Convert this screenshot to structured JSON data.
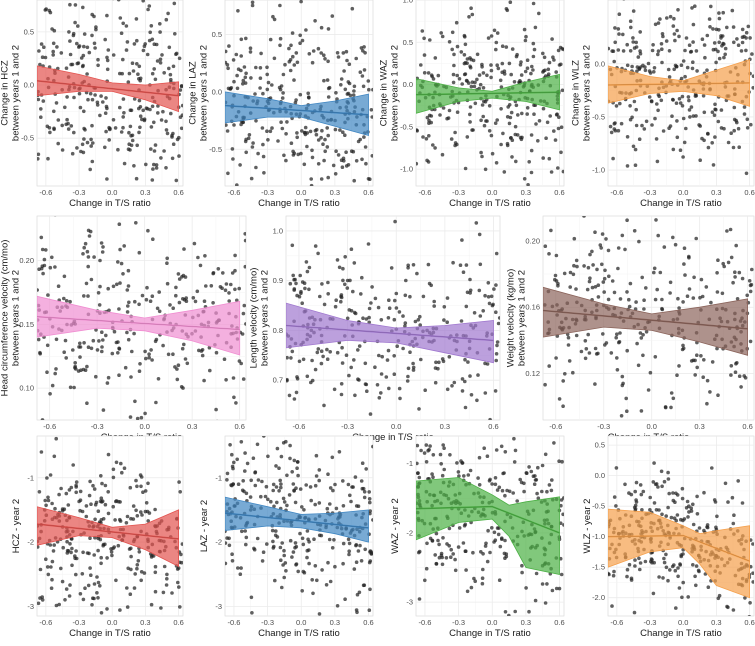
{
  "chart_data": [
    {
      "type": "scatter",
      "panel": "hcz-change",
      "xlabel": "Change in T/S ratio",
      "ylabel": "Change in HCZ\nbetween years 1 and 2",
      "xlim": [
        -0.68,
        0.64
      ],
      "ylim": [
        -0.95,
        0.8
      ],
      "xticks": [
        "-0.6",
        "-0.3",
        "0.0",
        "0.3",
        "0.6"
      ],
      "xtick_values": [
        -0.6,
        -0.3,
        0.0,
        0.3,
        0.6
      ],
      "yticks": [
        "-0.5",
        "0.0",
        "0.5"
      ],
      "ytick_values": [
        -0.5,
        0.0,
        0.5
      ],
      "color": "#e3534f",
      "fit": {
        "x": [
          -0.68,
          0.6
        ],
        "y": [
          0.04,
          -0.1
        ]
      },
      "band": {
        "x": [
          -0.68,
          -0.3,
          0.0,
          0.3,
          0.6
        ],
        "upper": [
          0.18,
          0.1,
          0.02,
          0.0,
          0.03
        ],
        "lower": [
          -0.1,
          -0.06,
          -0.06,
          -0.14,
          -0.25
        ]
      },
      "points_n": 320,
      "points_sd": 0.45
    },
    {
      "type": "scatter",
      "panel": "laz-change",
      "xlabel": "Change in T/S ratio",
      "ylabel": "Change in LAZ\nbetween years 1 and 2",
      "xlim": [
        -0.68,
        0.64
      ],
      "ylim": [
        -0.82,
        0.8
      ],
      "xticks": [
        "-0.6",
        "-0.3",
        "0.0",
        "0.3",
        "0.6"
      ],
      "xtick_values": [
        -0.6,
        -0.3,
        0.0,
        0.3,
        0.6
      ],
      "yticks": [
        "-0.5",
        "0.0",
        "0.5"
      ],
      "ytick_values": [
        -0.5,
        0.0,
        0.5
      ],
      "color": "#3f86c2",
      "fit": {
        "x": [
          -0.68,
          0.6
        ],
        "y": [
          -0.12,
          -0.2
        ]
      },
      "band": {
        "x": [
          -0.68,
          -0.3,
          0.0,
          0.3,
          0.6
        ],
        "upper": [
          0.0,
          -0.06,
          -0.12,
          -0.08,
          -0.02
        ],
        "lower": [
          -0.27,
          -0.22,
          -0.22,
          -0.3,
          -0.38
        ]
      },
      "points_n": 320,
      "points_sd": 0.38
    },
    {
      "type": "scatter",
      "panel": "waz-change",
      "xlabel": "Change in T/S ratio",
      "ylabel": "Change in WAZ\nbetween years 1 and 2",
      "xlim": [
        -0.68,
        0.64
      ],
      "ylim": [
        -1.2,
        1.0
      ],
      "xticks": [
        "-0.6",
        "-0.3",
        "0.0",
        "0.3",
        "0.6"
      ],
      "xtick_values": [
        -0.6,
        -0.3,
        0.0,
        0.3,
        0.6
      ],
      "yticks": [
        "-1.0",
        "-0.5",
        "0.0",
        "0.5",
        "1.0"
      ],
      "ytick_values": [
        -1.0,
        -0.5,
        0.0,
        0.5,
        1.0
      ],
      "color": "#4cb045",
      "fit": {
        "x": [
          -0.68,
          0.6
        ],
        "y": [
          -0.12,
          -0.09
        ]
      },
      "band": {
        "x": [
          -0.68,
          -0.3,
          0.0,
          0.3,
          0.6
        ],
        "upper": [
          0.07,
          -0.04,
          -0.08,
          0.03,
          0.12
        ],
        "lower": [
          -0.34,
          -0.2,
          -0.16,
          -0.2,
          -0.3
        ]
      },
      "points_n": 320,
      "points_sd": 0.45
    },
    {
      "type": "scatter",
      "panel": "wlz-change",
      "xlabel": "Change in T/S ratio",
      "ylabel": "Change in WLZ\nbetween years 1 and 2",
      "xlim": [
        -0.68,
        0.64
      ],
      "ylim": [
        -1.15,
        0.6
      ],
      "xticks": [
        "-0.6",
        "-0.3",
        "0.0",
        "0.3",
        "0.6"
      ],
      "xtick_values": [
        -0.6,
        -0.3,
        0.0,
        0.3,
        0.6
      ],
      "yticks": [
        "-1.0",
        "-0.5",
        "0.0"
      ],
      "ytick_values": [
        -1.0,
        -0.5,
        0.0
      ],
      "color": "#f5a04c",
      "fit": {
        "x": [
          -0.68,
          0.6
        ],
        "y": [
          -0.2,
          -0.18
        ]
      },
      "band": {
        "x": [
          -0.68,
          -0.3,
          0.0,
          0.3,
          0.6
        ],
        "upper": [
          -0.02,
          -0.12,
          -0.16,
          -0.06,
          0.04
        ],
        "lower": [
          -0.37,
          -0.28,
          -0.26,
          -0.3,
          -0.4
        ]
      },
      "points_n": 320,
      "points_sd": 0.38
    },
    {
      "type": "scatter",
      "panel": "hc-velocity",
      "xlabel": "Change in T/S ratio",
      "ylabel": "Head circumference velocity (cm/mo)\nbetween years 1 and 2",
      "xlim": [
        -0.68,
        0.64
      ],
      "ylim": [
        0.075,
        0.235
      ],
      "xticks": [
        "-0.6",
        "-0.3",
        "0.0",
        "0.3",
        "0.6"
      ],
      "xtick_values": [
        -0.6,
        -0.3,
        0.0,
        0.3,
        0.6
      ],
      "yticks": [
        "0.10",
        "0.15",
        "0.20"
      ],
      "ytick_values": [
        0.1,
        0.15,
        0.2
      ],
      "color": "#f08ed1",
      "fit": {
        "x": [
          -0.68,
          0.6
        ],
        "y": [
          0.156,
          0.146
        ]
      },
      "band": {
        "x": [
          -0.68,
          -0.3,
          0.0,
          0.3,
          0.6
        ],
        "upper": [
          0.172,
          0.161,
          0.155,
          0.161,
          0.168
        ],
        "lower": [
          0.14,
          0.147,
          0.145,
          0.137,
          0.126
        ]
      },
      "points_n": 320,
      "points_sd": 0.035
    },
    {
      "type": "scatter",
      "panel": "length-velocity",
      "xlabel": "Change in T/S ratio",
      "ylabel": "Length velocity (cm/mo)\nbetween years 1 and 2",
      "xlim": [
        -0.68,
        0.64
      ],
      "ylim": [
        0.62,
        1.03
      ],
      "xticks": [
        "-0.6",
        "-0.3",
        "0.0",
        "0.3",
        "0.6"
      ],
      "xtick_values": [
        -0.6,
        -0.3,
        0.0,
        0.3,
        0.6
      ],
      "yticks": [
        "0.7",
        "0.8",
        "0.9",
        "1.0"
      ],
      "ytick_values": [
        0.7,
        0.8,
        0.9,
        1.0
      ],
      "color": "#a078cf",
      "fit": {
        "x": [
          -0.68,
          0.6
        ],
        "y": [
          0.81,
          0.78
        ]
      },
      "band": {
        "x": [
          -0.68,
          -0.3,
          0.0,
          0.3,
          0.6
        ],
        "upper": [
          0.855,
          0.82,
          0.805,
          0.81,
          0.82
        ],
        "lower": [
          0.765,
          0.78,
          0.775,
          0.755,
          0.735
        ]
      },
      "points_n": 320,
      "points_sd": 0.09
    },
    {
      "type": "scatter",
      "panel": "weight-velocity",
      "xlabel": "Change in T/S ratio",
      "ylabel": "Weight velocity (kg/mo)\nbetween years 1 and 2",
      "xlim": [
        -0.68,
        0.64
      ],
      "ylim": [
        0.092,
        0.215
      ],
      "xticks": [
        "-0.6",
        "-0.3",
        "0.0",
        "0.3",
        "0.6"
      ],
      "xtick_values": [
        -0.6,
        -0.3,
        0.0,
        0.3,
        0.6
      ],
      "yticks": [
        "0.12",
        "0.16",
        "0.20"
      ],
      "ytick_values": [
        0.12,
        0.16,
        0.2
      ],
      "color": "#8b645b",
      "fit": {
        "x": [
          -0.68,
          0.6
        ],
        "y": [
          0.158,
          0.147
        ]
      },
      "band": {
        "x": [
          -0.68,
          -0.3,
          0.0,
          0.3,
          0.6
        ],
        "upper": [
          0.172,
          0.162,
          0.156,
          0.16,
          0.165
        ],
        "lower": [
          0.142,
          0.148,
          0.146,
          0.139,
          0.131
        ]
      },
      "points_n": 320,
      "points_sd": 0.028
    },
    {
      "type": "scatter",
      "panel": "hcz-year2",
      "xlabel": "Change in T/S ratio",
      "ylabel": "HCZ - year 2",
      "xlim": [
        -0.68,
        0.64
      ],
      "ylim": [
        -3.15,
        -0.35
      ],
      "xticks": [
        "-0.6",
        "-0.3",
        "0.0",
        "0.3",
        "0.6"
      ],
      "xtick_values": [
        -0.6,
        -0.3,
        0.0,
        0.3,
        0.6
      ],
      "yticks": [
        "-3",
        "-2",
        "-1"
      ],
      "ytick_values": [
        -3,
        -2,
        -1
      ],
      "color": "#e3534f",
      "fit": {
        "x": [
          -0.68,
          0.6
        ],
        "y": [
          -1.72,
          -1.95
        ]
      },
      "band": {
        "x": [
          -0.68,
          -0.3,
          0.0,
          0.3,
          0.6
        ],
        "upper": [
          -1.45,
          -1.62,
          -1.77,
          -1.72,
          -1.5
        ],
        "lower": [
          -2.05,
          -1.9,
          -1.93,
          -2.12,
          -2.38
        ]
      },
      "points_n": 320,
      "points_sd": 0.65
    },
    {
      "type": "scatter",
      "panel": "laz-year2",
      "xlabel": "Change in T/S ratio",
      "ylabel": "LAZ - year 2",
      "xlim": [
        -0.68,
        0.64
      ],
      "ylim": [
        -3.15,
        -0.35
      ],
      "xticks": [
        "-0.6",
        "-0.3",
        "0.0",
        "0.3",
        "0.6"
      ],
      "xtick_values": [
        -0.6,
        -0.3,
        0.0,
        0.3,
        0.6
      ],
      "yticks": [
        "-3",
        "-2",
        "-1"
      ],
      "ytick_values": [
        -3,
        -2,
        -1
      ],
      "color": "#3f86c2",
      "fit": {
        "x": [
          -0.68,
          0.6
        ],
        "y": [
          -1.55,
          -1.78
        ]
      },
      "band": {
        "x": [
          -0.68,
          -0.3,
          0.0,
          0.3,
          0.6
        ],
        "upper": [
          -1.3,
          -1.45,
          -1.57,
          -1.55,
          -1.5
        ],
        "lower": [
          -1.82,
          -1.75,
          -1.78,
          -1.87,
          -2.0
        ]
      },
      "points_n": 320,
      "points_sd": 0.6
    },
    {
      "type": "scatter",
      "panel": "waz-year2",
      "xlabel": "Change in T/S ratio",
      "ylabel": "WAZ - year 2",
      "xlim": [
        -0.68,
        0.64
      ],
      "ylim": [
        -3.2,
        -0.6
      ],
      "xticks": [
        "-0.6",
        "-0.3",
        "0.0",
        "0.3",
        "0.6"
      ],
      "xtick_values": [
        -0.6,
        -0.3,
        0.0,
        0.3,
        0.6
      ],
      "yticks": [
        "-3",
        "-2",
        "-1"
      ],
      "ytick_values": [
        -3,
        -2,
        -1
      ],
      "color": "#4cb045",
      "fit": {
        "x": [
          -0.68,
          0.0,
          0.6
        ],
        "y": [
          -1.65,
          -1.62,
          -2.0
        ]
      },
      "band": {
        "x": [
          -0.68,
          -0.3,
          0.0,
          0.15,
          0.3,
          0.6
        ],
        "upper": [
          -1.25,
          -1.2,
          -1.45,
          -1.6,
          -1.55,
          -1.48
        ],
        "lower": [
          -2.1,
          -1.85,
          -1.8,
          -2.05,
          -2.5,
          -2.6
        ]
      },
      "points_n": 320,
      "points_sd": 0.6
    },
    {
      "type": "scatter",
      "panel": "wlz-year2",
      "xlabel": "Change in T/S ratio",
      "ylabel": "WLZ - year 2",
      "xlim": [
        -0.68,
        0.64
      ],
      "ylim": [
        -2.3,
        0.65
      ],
      "xticks": [
        "-0.6",
        "-0.3",
        "0.0",
        "0.3",
        "0.6"
      ],
      "xtick_values": [
        -0.6,
        -0.3,
        0.0,
        0.3,
        0.6
      ],
      "yticks": [
        "-2.0",
        "-1.5",
        "-1.0",
        "-0.5",
        "0.0",
        "0.5"
      ],
      "ytick_values": [
        -2.0,
        -1.5,
        -1.0,
        -0.5,
        0.0,
        0.5
      ],
      "color": "#f5a04c",
      "fit": {
        "x": [
          -0.68,
          0.0,
          0.6
        ],
        "y": [
          -1.0,
          -0.98,
          -1.4
        ]
      },
      "band": {
        "x": [
          -0.68,
          -0.3,
          0.0,
          0.15,
          0.3,
          0.6
        ],
        "upper": [
          -0.55,
          -0.6,
          -0.82,
          -0.95,
          -0.9,
          -0.82
        ],
        "lower": [
          -1.5,
          -1.25,
          -1.18,
          -1.45,
          -1.8,
          -2.0
        ]
      },
      "points_n": 320,
      "points_sd": 0.5
    }
  ]
}
